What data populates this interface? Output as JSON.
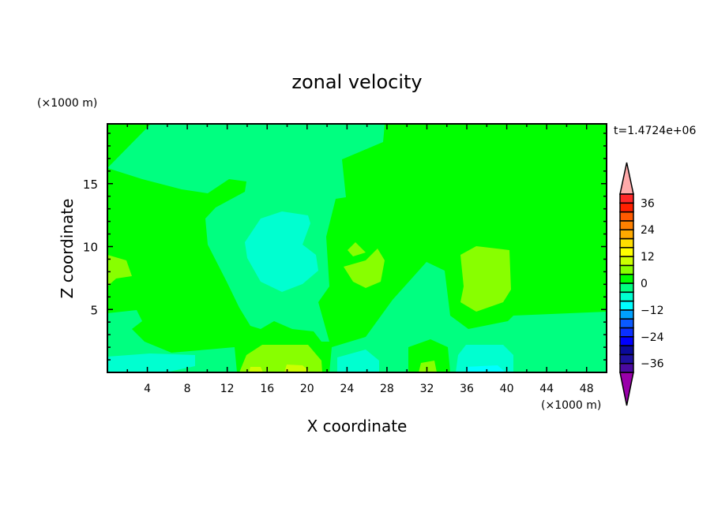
{
  "chart_data": {
    "type": "contour",
    "title": "zonal velocity",
    "xlabel": "X coordinate",
    "ylabel": "Z coordinate",
    "x_unit": "(×1000 m)",
    "y_unit": "(×1000 m)",
    "time_label": "t=1.4724e+06",
    "xlim": [
      0,
      50
    ],
    "ylim": [
      0,
      19.75
    ],
    "x_ticks": [
      4,
      8,
      12,
      16,
      20,
      24,
      28,
      32,
      36,
      40,
      44,
      48
    ],
    "y_ticks": [
      5,
      10,
      15
    ],
    "colorbar": {
      "levels": [
        -40,
        -36,
        -32,
        -28,
        -24,
        -20,
        -16,
        -12,
        -8,
        -4,
        0,
        4,
        8,
        12,
        16,
        20,
        24,
        28,
        32,
        36,
        40
      ],
      "labels": [
        36,
        24,
        12,
        0,
        -12,
        -24,
        -36
      ],
      "colors": [
        "#4b0aa0",
        "#1e10a0",
        "#0a0a9a",
        "#0000ff",
        "#0a30ff",
        "#0a5aff",
        "#00a0ff",
        "#00ffff",
        "#00ffd0",
        "#00ff80",
        "#00ff00",
        "#88ff00",
        "#ccff00",
        "#ffff00",
        "#ffdd00",
        "#ffaa00",
        "#ff8000",
        "#ff5a00",
        "#ff2000",
        "#ff2828"
      ],
      "over_color": "#ffaaaa",
      "under_color": "#9900aa"
    },
    "field_summary": {
      "dominant_range": [
        -4,
        4
      ],
      "max_range": [
        8,
        12
      ],
      "min_range": [
        -12,
        -8
      ]
    }
  }
}
